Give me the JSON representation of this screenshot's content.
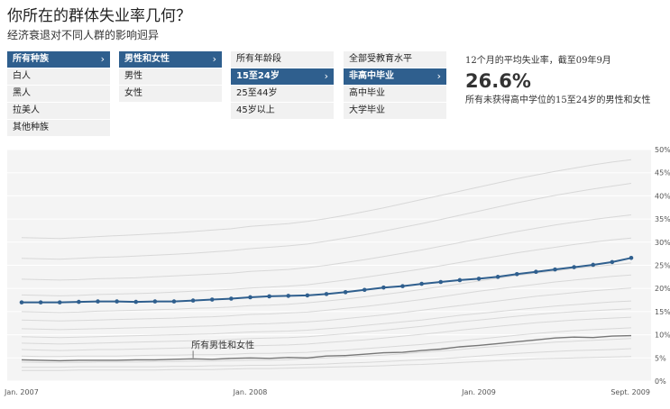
{
  "header": {
    "title": "你所在的群体失业率几何？",
    "subtitle": "经济衰退对不同人群的影响迥异"
  },
  "filters": {
    "race": {
      "items": [
        "所有种族",
        "白人",
        "黑人",
        "拉美人",
        "其他种族"
      ],
      "selected": 0
    },
    "gender": {
      "items": [
        "男性和女性",
        "男性",
        "女性"
      ],
      "selected": 0
    },
    "age": {
      "items": [
        "所有年龄段",
        "15至24岁",
        "25至44岁",
        "45岁以上"
      ],
      "selected": 1
    },
    "education": {
      "items": [
        "全部受教育水平",
        "非高中毕业",
        "高中毕业",
        "大学毕业"
      ],
      "selected": 1
    }
  },
  "summary": {
    "label": "12个月的平均失业率，截至09年9月",
    "value": "26.6%",
    "description": "所有未获得高中学位的15至24岁的男性和女性"
  },
  "chart_data": {
    "type": "line",
    "x": [
      "2007-01",
      "2007-02",
      "2007-03",
      "2007-04",
      "2007-05",
      "2007-06",
      "2007-07",
      "2007-08",
      "2007-09",
      "2007-10",
      "2007-11",
      "2007-12",
      "2008-01",
      "2008-02",
      "2008-03",
      "2008-04",
      "2008-05",
      "2008-06",
      "2008-07",
      "2008-08",
      "2008-09",
      "2008-10",
      "2008-11",
      "2008-12",
      "2009-01",
      "2009-02",
      "2009-03",
      "2009-04",
      "2009-05",
      "2009-06",
      "2009-07",
      "2009-08",
      "2009-09"
    ],
    "x_tick_labels": [
      {
        "label": "Jan. 2007",
        "x": "2007-01"
      },
      {
        "label": "Jan. 2008",
        "x": "2008-01"
      },
      {
        "label": "Jan. 2009",
        "x": "2009-01"
      },
      {
        "label": "Sept. 2009",
        "x": "2009-09"
      }
    ],
    "y_tick_labels": [
      "0%",
      "5%",
      "10%",
      "15%",
      "20%",
      "25%",
      "30%",
      "35%",
      "40%",
      "45%",
      "50%"
    ],
    "ylim": [
      0,
      50
    ],
    "highlight_series": {
      "color": "#2f5f8e",
      "values": [
        17.0,
        17.0,
        17.0,
        17.1,
        17.2,
        17.2,
        17.1,
        17.2,
        17.2,
        17.4,
        17.6,
        17.8,
        18.1,
        18.3,
        18.4,
        18.5,
        18.8,
        19.2,
        19.7,
        20.2,
        20.5,
        21.0,
        21.4,
        21.8,
        22.1,
        22.5,
        23.1,
        23.6,
        24.1,
        24.6,
        25.1,
        25.7,
        26.6
      ]
    },
    "reference_series": {
      "annotation": "所有男性和女性",
      "values": [
        4.6,
        4.5,
        4.4,
        4.5,
        4.5,
        4.5,
        4.6,
        4.6,
        4.7,
        4.8,
        4.7,
        4.9,
        5.0,
        4.9,
        5.1,
        5.0,
        5.4,
        5.5,
        5.8,
        6.1,
        6.2,
        6.6,
        6.9,
        7.4,
        7.7,
        8.1,
        8.5,
        8.9,
        9.3,
        9.5,
        9.4,
        9.7,
        9.8
      ]
    },
    "background_series": [
      [
        2.3,
        2.3,
        2.3,
        2.4,
        2.4,
        2.4,
        2.4,
        2.4,
        2.5,
        2.5,
        2.5,
        2.6,
        2.7,
        2.7,
        2.8,
        2.9,
        3.0,
        3.1,
        3.2,
        3.3,
        3.5,
        3.6,
        3.8,
        4.0,
        4.2,
        4.4,
        4.6,
        4.8,
        4.9,
        5.0,
        5.1,
        5.2,
        5.3
      ],
      [
        3.0,
        3.0,
        3.0,
        3.1,
        3.1,
        3.1,
        3.1,
        3.1,
        3.2,
        3.2,
        3.3,
        3.3,
        3.4,
        3.4,
        3.5,
        3.6,
        3.7,
        3.9,
        4.0,
        4.2,
        4.4,
        4.6,
        4.8,
        5.1,
        5.4,
        5.7,
        6.0,
        6.2,
        6.4,
        6.6,
        6.7,
        6.8,
        7.0
      ],
      [
        4.1,
        4.0,
        4.0,
        4.0,
        4.1,
        4.1,
        4.1,
        4.2,
        4.2,
        4.3,
        4.3,
        4.4,
        4.5,
        4.5,
        4.6,
        4.8,
        5.0,
        5.2,
        5.4,
        5.6,
        5.9,
        6.2,
        6.5,
        6.8,
        7.2,
        7.5,
        7.8,
        8.1,
        8.4,
        8.6,
        8.8,
        9.0,
        9.2
      ],
      [
        5.4,
        5.3,
        5.3,
        5.4,
        5.4,
        5.4,
        5.5,
        5.6,
        5.6,
        5.7,
        5.7,
        5.8,
        6.0,
        6.0,
        6.1,
        6.2,
        6.5,
        6.7,
        7.0,
        7.3,
        7.6,
        7.9,
        8.3,
        8.7,
        9.1,
        9.5,
        9.9,
        10.3,
        10.6,
        10.9,
        11.1,
        11.3,
        11.5
      ],
      [
        6.8,
        6.7,
        6.6,
        6.7,
        6.8,
        6.8,
        6.9,
        7.0,
        7.1,
        7.2,
        7.2,
        7.4,
        7.6,
        7.7,
        7.8,
        8.0,
        8.3,
        8.6,
        8.9,
        9.3,
        9.7,
        10.1,
        10.5,
        11.0,
        11.4,
        11.8,
        12.2,
        12.6,
        12.9,
        13.2,
        13.4,
        13.6,
        13.8
      ],
      [
        8.2,
        8.1,
        8.0,
        8.1,
        8.2,
        8.3,
        8.4,
        8.5,
        8.6,
        8.7,
        8.8,
        9.0,
        9.2,
        9.3,
        9.4,
        9.6,
        9.9,
        10.2,
        10.6,
        11.0,
        11.4,
        11.8,
        12.3,
        12.8,
        13.2,
        13.6,
        14.0,
        14.4,
        14.7,
        15.0,
        15.2,
        15.4,
        15.6
      ],
      [
        9.6,
        9.5,
        9.4,
        9.5,
        9.6,
        9.7,
        9.8,
        9.9,
        10.0,
        10.1,
        10.2,
        10.4,
        10.6,
        10.7,
        10.8,
        11.0,
        11.3,
        11.6,
        12.0,
        12.4,
        12.8,
        13.2,
        13.7,
        14.2,
        14.6,
        15.0,
        15.4,
        15.8,
        16.2,
        16.5,
        16.8,
        17.1,
        17.3
      ],
      [
        11.3,
        11.2,
        11.1,
        11.2,
        11.3,
        11.4,
        11.5,
        11.6,
        11.7,
        11.8,
        11.9,
        12.1,
        12.3,
        12.4,
        12.6,
        12.8,
        13.1,
        13.5,
        13.9,
        14.3,
        14.8,
        15.3,
        15.8,
        16.3,
        16.8,
        17.3,
        17.8,
        18.3,
        18.7,
        19.1,
        19.5,
        19.8,
        20.1
      ],
      [
        13.2,
        13.1,
        13.0,
        13.1,
        13.2,
        13.3,
        13.4,
        13.5,
        13.6,
        13.8,
        13.9,
        14.1,
        14.4,
        14.5,
        14.7,
        14.9,
        15.3,
        15.7,
        16.1,
        16.6,
        17.1,
        17.6,
        18.2,
        18.8,
        19.4,
        19.9,
        20.4,
        20.9,
        21.4,
        21.8,
        22.2,
        22.6,
        22.9
      ],
      [
        15.0,
        14.9,
        14.8,
        14.9,
        15.1,
        15.2,
        15.3,
        15.4,
        15.5,
        15.7,
        15.8,
        16.0,
        16.3,
        16.4,
        16.6,
        16.9,
        17.3,
        17.7,
        18.2,
        18.7,
        19.2,
        19.8,
        20.4,
        21.0,
        21.6,
        22.2,
        22.8,
        23.3,
        23.8,
        24.3,
        24.7,
        25.1,
        25.5
      ],
      [
        18.6,
        18.5,
        18.4,
        18.5,
        18.7,
        18.8,
        18.9,
        19.0,
        19.2,
        19.4,
        19.6,
        19.8,
        20.1,
        20.3,
        20.5,
        20.8,
        21.3,
        21.8,
        22.4,
        23.0,
        23.6,
        24.2,
        24.9,
        25.6,
        26.3,
        27.0,
        27.7,
        28.3,
        28.9,
        29.5,
        30.0,
        30.5,
        30.9
      ],
      [
        22.0,
        21.9,
        21.8,
        21.9,
        22.1,
        22.2,
        22.3,
        22.5,
        22.7,
        22.9,
        23.1,
        23.3,
        23.7,
        23.9,
        24.1,
        24.5,
        25.0,
        25.6,
        26.2,
        26.9,
        27.6,
        28.3,
        29.1,
        29.9,
        30.7,
        31.5,
        32.3,
        33.0,
        33.7,
        34.3,
        34.9,
        35.4,
        35.9
      ],
      [
        26.5,
        26.4,
        26.3,
        26.5,
        26.7,
        26.8,
        27.0,
        27.2,
        27.4,
        27.6,
        27.9,
        28.2,
        28.6,
        28.9,
        29.2,
        29.6,
        30.2,
        30.9,
        31.6,
        32.4,
        33.2,
        34.0,
        34.9,
        35.8,
        36.7,
        37.6,
        38.5,
        39.3,
        40.1,
        40.8,
        41.5,
        42.1,
        42.7
      ],
      [
        31.0,
        30.9,
        30.8,
        31.0,
        31.2,
        31.4,
        31.6,
        31.8,
        32.0,
        32.3,
        32.6,
        32.9,
        33.4,
        33.7,
        34.0,
        34.5,
        35.1,
        35.8,
        36.6,
        37.4,
        38.3,
        39.2,
        40.1,
        41.0,
        41.9,
        42.8,
        43.7,
        44.5,
        45.3,
        46.0,
        46.7,
        47.3,
        47.8
      ]
    ]
  }
}
